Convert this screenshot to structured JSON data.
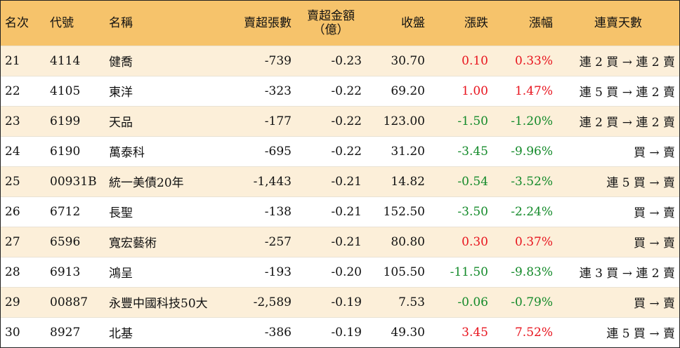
{
  "header": {
    "rank": "名次",
    "code": "代號",
    "name": "名稱",
    "net_sell_shares": "賣超張數",
    "net_sell_amount_line1": "賣超金額",
    "net_sell_amount_line2": "（億）",
    "close": "收盤",
    "change": "漲跌",
    "change_pct": "漲幅",
    "streak": "連賣天數"
  },
  "colors": {
    "header_bg": "#f6c36b",
    "stripe_bg": "#fcefd9",
    "up": "#e8141e",
    "down": "#148a2a"
  },
  "rows": [
    {
      "rank": "21",
      "code": "4114",
      "name": "健喬",
      "shares": "-739",
      "amount": "-0.23",
      "close": "30.70",
      "change": "0.10",
      "pct": "0.33%",
      "dir": "up",
      "streak": "連 2 買 → 連 2 賣"
    },
    {
      "rank": "22",
      "code": "4105",
      "name": "東洋",
      "shares": "-323",
      "amount": "-0.22",
      "close": "69.20",
      "change": "1.00",
      "pct": "1.47%",
      "dir": "up",
      "streak": "連 5 買 → 連 2 賣"
    },
    {
      "rank": "23",
      "code": "6199",
      "name": "天品",
      "shares": "-177",
      "amount": "-0.22",
      "close": "123.00",
      "change": "-1.50",
      "pct": "-1.20%",
      "dir": "down",
      "streak": "連 2 買 → 連 2 賣"
    },
    {
      "rank": "24",
      "code": "6190",
      "name": "萬泰科",
      "shares": "-695",
      "amount": "-0.22",
      "close": "31.20",
      "change": "-3.45",
      "pct": "-9.96%",
      "dir": "down",
      "streak": "買 → 賣"
    },
    {
      "rank": "25",
      "code": "00931B",
      "name": "統一美債20年",
      "shares": "-1,443",
      "amount": "-0.21",
      "close": "14.82",
      "change": "-0.54",
      "pct": "-3.52%",
      "dir": "down",
      "streak": "連 5 買 → 賣"
    },
    {
      "rank": "26",
      "code": "6712",
      "name": "長聖",
      "shares": "-138",
      "amount": "-0.21",
      "close": "152.50",
      "change": "-3.50",
      "pct": "-2.24%",
      "dir": "down",
      "streak": "買 → 賣"
    },
    {
      "rank": "27",
      "code": "6596",
      "name": "寬宏藝術",
      "shares": "-257",
      "amount": "-0.21",
      "close": "80.80",
      "change": "0.30",
      "pct": "0.37%",
      "dir": "up",
      "streak": "買 → 賣"
    },
    {
      "rank": "28",
      "code": "6913",
      "name": "鴻呈",
      "shares": "-193",
      "amount": "-0.20",
      "close": "105.50",
      "change": "-11.50",
      "pct": "-9.83%",
      "dir": "down",
      "streak": "連 3 買 → 連 2 賣"
    },
    {
      "rank": "29",
      "code": "00887",
      "name": "永豐中國科技50大",
      "shares": "-2,589",
      "amount": "-0.19",
      "close": "7.53",
      "change": "-0.06",
      "pct": "-0.79%",
      "dir": "down",
      "streak": "買 → 賣"
    },
    {
      "rank": "30",
      "code": "8927",
      "name": "北基",
      "shares": "-386",
      "amount": "-0.19",
      "close": "49.30",
      "change": "3.45",
      "pct": "7.52%",
      "dir": "up",
      "streak": "連 5 買 → 賣"
    }
  ]
}
